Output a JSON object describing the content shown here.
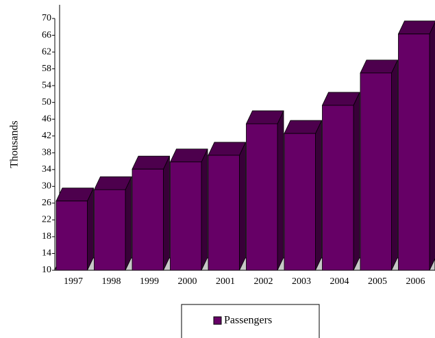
{
  "chart_data": {
    "type": "bar3d",
    "y_label": "Thousands",
    "categories": [
      "1997",
      "1998",
      "1999",
      "2000",
      "2001",
      "2002",
      "2003",
      "2004",
      "2005",
      "2006"
    ],
    "series": [
      {
        "name": "Passengers",
        "color": "#660066",
        "values": [
          26.5,
          29.2,
          34.1,
          35.8,
          37.4,
          44.9,
          42.6,
          49.3,
          57.0,
          66.3
        ]
      }
    ],
    "ylim": [
      10,
      70
    ],
    "yticks": [
      10,
      14,
      18,
      22,
      26,
      30,
      34,
      38,
      42,
      46,
      50,
      54,
      58,
      62,
      66,
      70
    ],
    "legend": "bottom"
  }
}
